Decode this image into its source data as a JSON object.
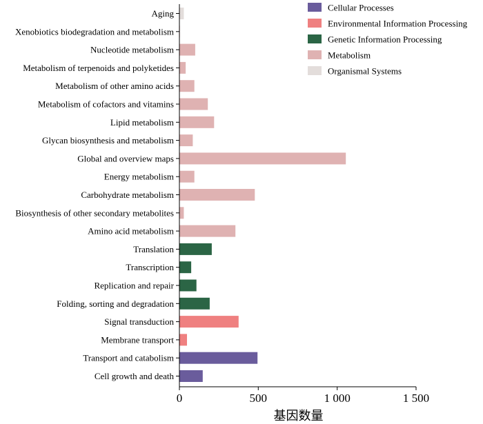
{
  "chart_data": {
    "type": "bar",
    "orientation": "horizontal",
    "xlabel": "基因数量",
    "ylabel": "",
    "xlim": [
      0,
      1500
    ],
    "xticks": [
      0,
      500,
      1000,
      1500
    ],
    "xtick_labels": [
      "0",
      "500",
      "1 000",
      "1 500"
    ],
    "grid": false,
    "legend_position": "top-right",
    "legend": [
      {
        "name": "Cellular Processes",
        "color": "#6a5c9c"
      },
      {
        "name": "Environmental Information Processing",
        "color": "#ef8080"
      },
      {
        "name": "Genetic Information Processing",
        "color": "#2b6545"
      },
      {
        "name": "Metabolism",
        "color": "#dfb2b2"
      },
      {
        "name": "Organismal Systems",
        "color": "#e3dddb"
      }
    ],
    "bars": [
      {
        "label": "Aging",
        "value": 28,
        "group": "Organismal Systems"
      },
      {
        "label": "Xenobiotics biodegradation and metabolism",
        "value": 3,
        "group": "Metabolism"
      },
      {
        "label": "Nucleotide metabolism",
        "value": 100,
        "group": "Metabolism"
      },
      {
        "label": "Metabolism of terpenoids and polyketides",
        "value": 40,
        "group": "Metabolism"
      },
      {
        "label": "Metabolism of other amino acids",
        "value": 95,
        "group": "Metabolism"
      },
      {
        "label": "Metabolism of cofactors and vitamins",
        "value": 180,
        "group": "Metabolism"
      },
      {
        "label": "Lipid metabolism",
        "value": 220,
        "group": "Metabolism"
      },
      {
        "label": "Glycan biosynthesis and metabolism",
        "value": 85,
        "group": "Metabolism"
      },
      {
        "label": "Global and overview maps",
        "value": 1055,
        "group": "Metabolism"
      },
      {
        "label": "Energy metabolism",
        "value": 95,
        "group": "Metabolism"
      },
      {
        "label": "Carbohydrate metabolism",
        "value": 478,
        "group": "Metabolism"
      },
      {
        "label": "Biosynthesis of other secondary metabolites",
        "value": 28,
        "group": "Metabolism"
      },
      {
        "label": "Amino acid metabolism",
        "value": 355,
        "group": "Metabolism"
      },
      {
        "label": "Translation",
        "value": 205,
        "group": "Genetic Information Processing"
      },
      {
        "label": "Transcription",
        "value": 75,
        "group": "Genetic Information Processing"
      },
      {
        "label": "Replication and repair",
        "value": 108,
        "group": "Genetic Information Processing"
      },
      {
        "label": "Folding, sorting and degradation",
        "value": 192,
        "group": "Genetic Information Processing"
      },
      {
        "label": "Signal transduction",
        "value": 375,
        "group": "Environmental Information Processing"
      },
      {
        "label": "Membrane transport",
        "value": 48,
        "group": "Environmental Information Processing"
      },
      {
        "label": "Transport and catabolism",
        "value": 495,
        "group": "Cellular Processes"
      },
      {
        "label": "Cell growth and death",
        "value": 148,
        "group": "Cellular Processes"
      }
    ]
  }
}
